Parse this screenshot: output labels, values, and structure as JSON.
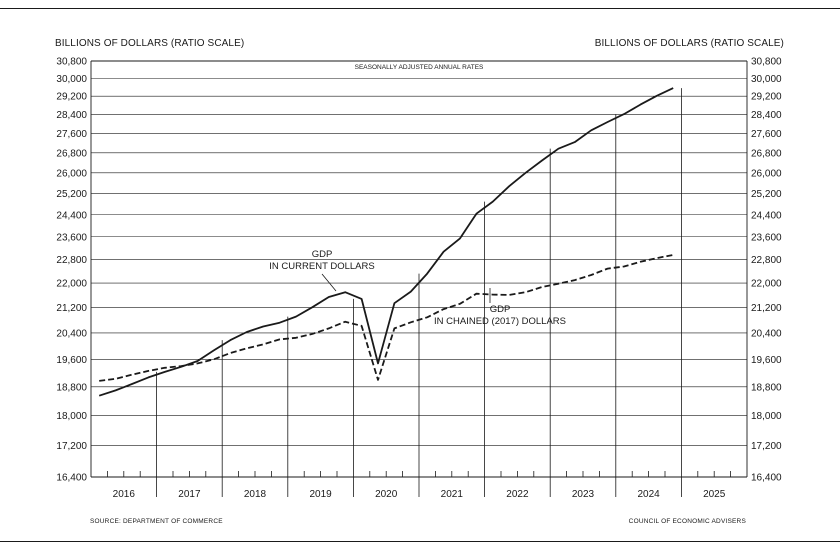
{
  "header": {
    "left_axis_title": "BILLIONS OF DOLLARS (RATIO SCALE)",
    "right_axis_title": "BILLIONS OF DOLLARS (RATIO SCALE)"
  },
  "footer": {
    "source": "SOURCE: DEPARTMENT OF COMMERCE",
    "credit": "COUNCIL OF ECONOMIC ADVISERS"
  },
  "chart_data": {
    "type": "line",
    "subtitle": "SEASONALLY ADJUSTED ANNUAL RATES",
    "ylabel": "BILLIONS OF DOLLARS (RATIO SCALE)",
    "y_scale": "log",
    "ylim": [
      16400,
      30800
    ],
    "yticks": [
      16400,
      17200,
      18000,
      18800,
      19600,
      20400,
      21200,
      22000,
      22800,
      23600,
      24400,
      25200,
      26000,
      26800,
      27600,
      28400,
      29200,
      30000,
      30800
    ],
    "ytick_labels": [
      "16,400",
      "17,200",
      "18,000",
      "18,800",
      "19,600",
      "20,400",
      "21,200",
      "22,000",
      "22,800",
      "23,600",
      "24,400",
      "25,200",
      "26,000",
      "26,800",
      "27,600",
      "28,400",
      "29,200",
      "30,000",
      "30,800"
    ],
    "x_categories": [
      "2016",
      "2017",
      "2018",
      "2019",
      "2020",
      "2021",
      "2022",
      "2023",
      "2024",
      "2025"
    ],
    "xlim": [
      "2016 Q1",
      "2025 Q4"
    ],
    "grid": "horizontal gridlines at each tick; vertical lines from each year boundary up to the current-dollar GDP line",
    "series": [
      {
        "name": "GDP IN CURRENT DOLLARS",
        "label_lines": [
          "GDP",
          "IN CURRENT DOLLARS"
        ],
        "style": "solid",
        "color": "#1a1a1a",
        "x": [
          "2016 Q1",
          "2016 Q2",
          "2016 Q3",
          "2016 Q4",
          "2017 Q1",
          "2017 Q2",
          "2017 Q3",
          "2017 Q4",
          "2018 Q1",
          "2018 Q2",
          "2018 Q3",
          "2018 Q4",
          "2019 Q1",
          "2019 Q2",
          "2019 Q3",
          "2019 Q4",
          "2020 Q1",
          "2020 Q2",
          "2020 Q3",
          "2020 Q4",
          "2021 Q1",
          "2021 Q2",
          "2021 Q3",
          "2021 Q4",
          "2022 Q1",
          "2022 Q2",
          "2022 Q3",
          "2022 Q4",
          "2023 Q1",
          "2023 Q2",
          "2023 Q3",
          "2023 Q4",
          "2024 Q1",
          "2024 Q2",
          "2024 Q3",
          "2024 Q4"
        ],
        "values": [
          18550,
          18700,
          18880,
          19070,
          19230,
          19380,
          19550,
          19870,
          20180,
          20430,
          20600,
          20720,
          20910,
          21210,
          21540,
          21700,
          21480,
          19480,
          21340,
          21720,
          22320,
          23070,
          23540,
          24440,
          24890,
          25480,
          26000,
          26490,
          26970,
          27240,
          27730,
          28080,
          28420,
          28830,
          29220,
          29560
        ]
      },
      {
        "name": "GDP IN CHAINED (2017) DOLLARS",
        "label_lines": [
          "GDP",
          "IN CHAINED (2017) DOLLARS"
        ],
        "style": "dashed",
        "color": "#1a1a1a",
        "x": [
          "2016 Q1",
          "2016 Q2",
          "2016 Q3",
          "2016 Q4",
          "2017 Q1",
          "2017 Q2",
          "2017 Q3",
          "2017 Q4",
          "2018 Q1",
          "2018 Q2",
          "2018 Q3",
          "2018 Q4",
          "2019 Q1",
          "2019 Q2",
          "2019 Q3",
          "2019 Q4",
          "2020 Q1",
          "2020 Q2",
          "2020 Q3",
          "2020 Q4",
          "2021 Q1",
          "2021 Q2",
          "2021 Q3",
          "2021 Q4",
          "2022 Q1",
          "2022 Q2",
          "2022 Q3",
          "2022 Q4",
          "2023 Q1",
          "2023 Q2",
          "2023 Q3",
          "2023 Q4",
          "2024 Q1",
          "2024 Q2",
          "2024 Q3",
          "2024 Q4"
        ],
        "values": [
          18970,
          19030,
          19150,
          19260,
          19350,
          19400,
          19480,
          19600,
          19790,
          19930,
          20050,
          20200,
          20250,
          20370,
          20540,
          20750,
          20620,
          19000,
          20540,
          20730,
          20890,
          21150,
          21320,
          21650,
          21620,
          21610,
          21700,
          21870,
          21980,
          22100,
          22270,
          22490,
          22560,
          22720,
          22850,
          22960
        ]
      }
    ]
  }
}
